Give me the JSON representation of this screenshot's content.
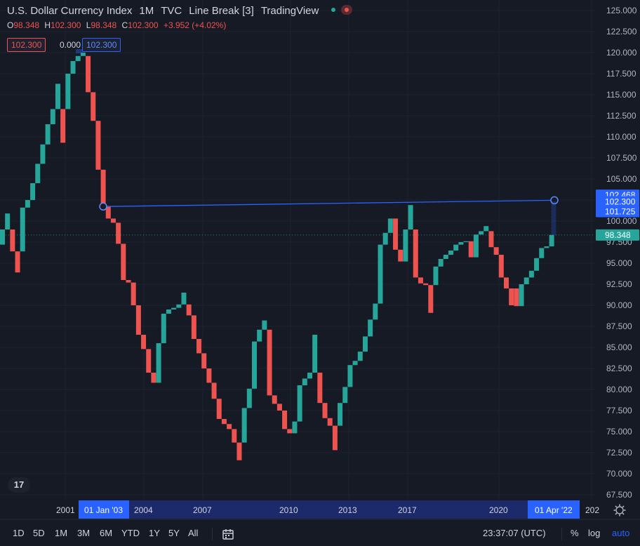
{
  "header": {
    "symbol_name": "U.S. Dollar Currency Index",
    "interval": "1M",
    "exchange": "TVC",
    "chart_type": "Line Break [3]",
    "brand": "TradingView"
  },
  "ohlc": {
    "o_label": "O",
    "o": "98.348",
    "h_label": "H",
    "h": "102.300",
    "l_label": "L",
    "l": "98.348",
    "c_label": "C",
    "c": "102.300",
    "change": "+3.952 (+4.02%)"
  },
  "measure": {
    "left_price": "102.300",
    "delta": "0.000",
    "right_price": "102.300"
  },
  "price_axis": {
    "ticks": [
      "125.000",
      "122.500",
      "120.000",
      "117.500",
      "115.000",
      "112.500",
      "110.000",
      "107.500",
      "105.000",
      "100.000",
      "97.500",
      "95.000",
      "92.500",
      "90.000",
      "87.500",
      "85.000",
      "82.500",
      "80.000",
      "77.500",
      "75.000",
      "72.500",
      "70.000",
      "67.500"
    ],
    "labels": [
      {
        "text": "102.468",
        "value": 102.468,
        "color": "#2962ff"
      },
      {
        "text": "102.300",
        "value": 102.3,
        "color": "#2962ff"
      },
      {
        "text": "101.725",
        "value": 101.725,
        "color": "#2962ff"
      },
      {
        "text": "98.348",
        "value": 98.348,
        "color": "#26a69a"
      }
    ]
  },
  "time_axis": {
    "ticks": [
      "2001",
      "2004",
      "2007",
      "2010",
      "2013",
      "2017",
      "2020",
      "202"
    ],
    "highlight_start": "01 Jan '03",
    "highlight_end": "01 Apr '22"
  },
  "toolbar": {
    "timeframes": [
      "1D",
      "5D",
      "1M",
      "3M",
      "6M",
      "YTD",
      "1Y",
      "5Y",
      "All"
    ],
    "clock": "23:37:07 (UTC)",
    "percent": "%",
    "log": "log",
    "auto": "auto"
  },
  "logo_text": "17",
  "colors": {
    "up": "#26a69a",
    "down": "#ef5350",
    "accent": "#2962ff",
    "bg": "#161a25"
  },
  "chart_data": {
    "type": "line-break",
    "title": "U.S. Dollar Currency Index",
    "ylim": [
      67.5,
      125
    ],
    "blocks": [
      {
        "open": 97.2,
        "close": 99.0
      },
      {
        "open": 99.0,
        "close": 100.9
      },
      {
        "open": 99.0,
        "close": 96.4
      },
      {
        "open": 96.4,
        "close": 93.9
      },
      {
        "open": 96.4,
        "close": 101.6
      },
      {
        "open": 101.6,
        "close": 102.5
      },
      {
        "open": 102.5,
        "close": 104.5
      },
      {
        "open": 104.5,
        "close": 106.8
      },
      {
        "open": 106.8,
        "close": 109.1
      },
      {
        "open": 109.1,
        "close": 111.5
      },
      {
        "open": 111.5,
        "close": 113.3
      },
      {
        "open": 113.3,
        "close": 116.3
      },
      {
        "open": 113.3,
        "close": 109.3
      },
      {
        "open": 113.3,
        "close": 117.5
      },
      {
        "open": 117.5,
        "close": 119.0
      },
      {
        "open": 119.0,
        "close": 119.6
      },
      {
        "open": 119.6,
        "close": 120.0
      },
      {
        "open": 119.6,
        "close": 115.3
      },
      {
        "open": 115.3,
        "close": 111.9
      },
      {
        "open": 111.9,
        "close": 106.1
      },
      {
        "open": 106.1,
        "close": 101.8
      },
      {
        "open": 101.8,
        "close": 100.3
      },
      {
        "open": 100.3,
        "close": 99.8
      },
      {
        "open": 99.8,
        "close": 97.3
      },
      {
        "open": 97.3,
        "close": 93.0
      },
      {
        "open": 93.0,
        "close": 92.7
      },
      {
        "open": 92.7,
        "close": 90.0
      },
      {
        "open": 90.0,
        "close": 86.5
      },
      {
        "open": 86.5,
        "close": 84.8
      },
      {
        "open": 84.8,
        "close": 82.0
      },
      {
        "open": 82.0,
        "close": 80.8
      },
      {
        "open": 80.8,
        "close": 85.5
      },
      {
        "open": 85.5,
        "close": 89.0
      },
      {
        "open": 89.0,
        "close": 89.5
      },
      {
        "open": 89.5,
        "close": 89.7
      },
      {
        "open": 89.7,
        "close": 90.1
      },
      {
        "open": 90.1,
        "close": 91.5
      },
      {
        "open": 90.1,
        "close": 88.8
      },
      {
        "open": 88.8,
        "close": 86.0
      },
      {
        "open": 86.0,
        "close": 84.3
      },
      {
        "open": 84.3,
        "close": 82.5
      },
      {
        "open": 82.5,
        "close": 80.8
      },
      {
        "open": 80.8,
        "close": 78.9
      },
      {
        "open": 78.9,
        "close": 76.5
      },
      {
        "open": 76.5,
        "close": 75.9
      },
      {
        "open": 75.9,
        "close": 75.3
      },
      {
        "open": 75.3,
        "close": 73.7
      },
      {
        "open": 73.7,
        "close": 71.6
      },
      {
        "open": 73.7,
        "close": 77.8
      },
      {
        "open": 77.8,
        "close": 80.1
      },
      {
        "open": 80.1,
        "close": 85.7
      },
      {
        "open": 85.7,
        "close": 87.1
      },
      {
        "open": 87.1,
        "close": 88.2
      },
      {
        "open": 87.1,
        "close": 79.3
      },
      {
        "open": 79.3,
        "close": 78.3
      },
      {
        "open": 78.3,
        "close": 77.5
      },
      {
        "open": 77.5,
        "close": 75.3
      },
      {
        "open": 75.3,
        "close": 74.8
      },
      {
        "open": 74.8,
        "close": 76.2
      },
      {
        "open": 76.2,
        "close": 80.5
      },
      {
        "open": 80.5,
        "close": 81.3
      },
      {
        "open": 81.3,
        "close": 82.0
      },
      {
        "open": 82.0,
        "close": 86.5
      },
      {
        "open": 82.0,
        "close": 78.4
      },
      {
        "open": 78.4,
        "close": 76.6
      },
      {
        "open": 76.6,
        "close": 75.7
      },
      {
        "open": 75.7,
        "close": 72.8
      },
      {
        "open": 75.7,
        "close": 78.4
      },
      {
        "open": 78.4,
        "close": 80.3
      },
      {
        "open": 80.3,
        "close": 82.9
      },
      {
        "open": 82.9,
        "close": 83.4
      },
      {
        "open": 83.4,
        "close": 84.5
      },
      {
        "open": 84.5,
        "close": 86.3
      },
      {
        "open": 86.3,
        "close": 88.3
      },
      {
        "open": 88.3,
        "close": 90.2
      },
      {
        "open": 90.2,
        "close": 97.2
      },
      {
        "open": 97.2,
        "close": 98.6
      },
      {
        "open": 98.6,
        "close": 100.3
      },
      {
        "open": 100.3,
        "close": 96.6
      },
      {
        "open": 96.6,
        "close": 95.2
      },
      {
        "open": 95.2,
        "close": 99.0
      },
      {
        "open": 99.0,
        "close": 101.9
      },
      {
        "open": 99.0,
        "close": 93.3
      },
      {
        "open": 93.3,
        "close": 92.6
      },
      {
        "open": 92.6,
        "close": 92.4
      },
      {
        "open": 92.4,
        "close": 89.1
      },
      {
        "open": 92.4,
        "close": 94.6
      },
      {
        "open": 94.6,
        "close": 95.5
      },
      {
        "open": 95.5,
        "close": 96.0
      },
      {
        "open": 96.0,
        "close": 96.5
      },
      {
        "open": 96.5,
        "close": 97.2
      },
      {
        "open": 97.2,
        "close": 97.5
      },
      {
        "open": 97.5,
        "close": 97.6
      },
      {
        "open": 97.6,
        "close": 95.7
      },
      {
        "open": 95.7,
        "close": 98.4
      },
      {
        "open": 98.4,
        "close": 98.8
      },
      {
        "open": 98.8,
        "close": 99.4
      },
      {
        "open": 98.8,
        "close": 96.9
      },
      {
        "open": 96.9,
        "close": 96.0
      },
      {
        "open": 96.0,
        "close": 93.3
      },
      {
        "open": 93.3,
        "close": 92.0
      },
      {
        "open": 92.0,
        "close": 90.0
      },
      {
        "open": 92.0,
        "close": 89.9
      },
      {
        "open": 89.9,
        "close": 92.5
      },
      {
        "open": 92.5,
        "close": 93.3
      },
      {
        "open": 93.3,
        "close": 94.1
      },
      {
        "open": 94.1,
        "close": 95.6
      },
      {
        "open": 95.6,
        "close": 96.8
      },
      {
        "open": 96.8,
        "close": 97.0
      },
      {
        "open": 97.0,
        "close": 98.348
      }
    ],
    "trendline": {
      "from": 101.725,
      "to": 102.468
    },
    "last_price": 98.348
  }
}
